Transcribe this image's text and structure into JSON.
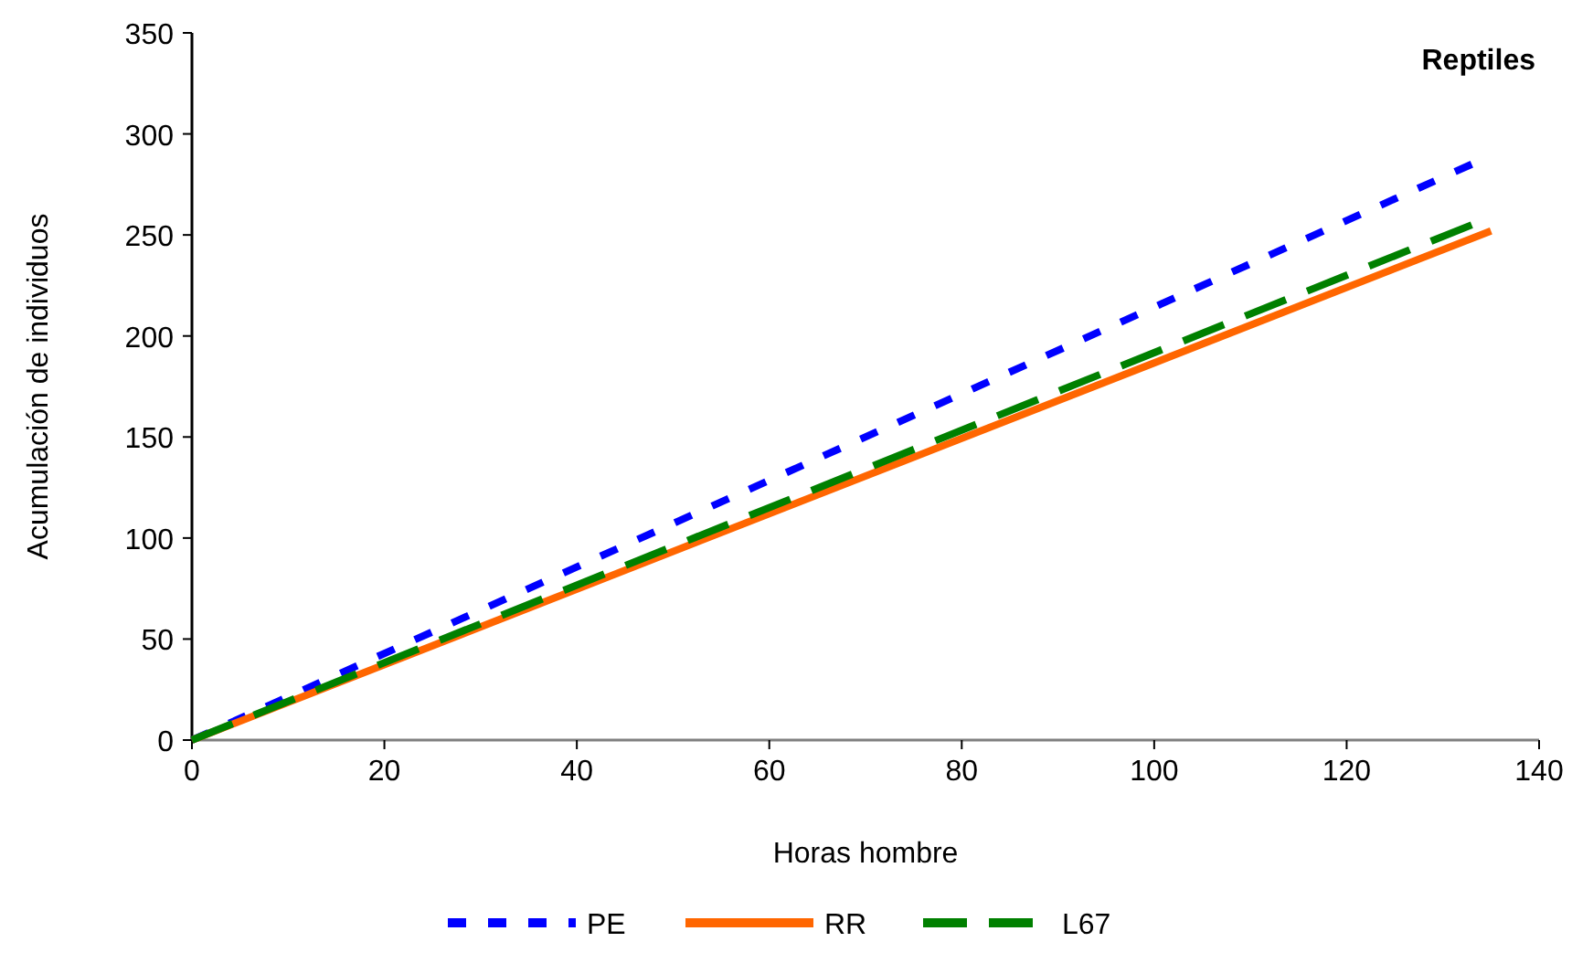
{
  "chart_data": {
    "type": "line",
    "title": "Reptiles",
    "xlabel": "Horas hombre",
    "ylabel": "Acumulación de individuos",
    "xlim": [
      0,
      140
    ],
    "xticks": [
      0,
      20,
      40,
      60,
      80,
      100,
      120,
      140
    ],
    "ylim": [
      0,
      350
    ],
    "yticks": [
      0,
      50,
      100,
      150,
      200,
      250,
      300,
      350
    ],
    "grid": false,
    "legend": "bottom",
    "marker": "none",
    "series": [
      {
        "name": "PE",
        "color": "#0000ff",
        "line_style": "dotted",
        "x": [
          0,
          133
        ],
        "values": [
          0,
          285
        ]
      },
      {
        "name": "RR",
        "color": "#ff6600",
        "line_style": "solid",
        "x": [
          0,
          135
        ],
        "values": [
          0,
          252
        ]
      },
      {
        "name": "L67",
        "color": "#008000",
        "line_style": "dashed",
        "x": [
          0,
          133
        ],
        "values": [
          0,
          255
        ]
      }
    ]
  }
}
